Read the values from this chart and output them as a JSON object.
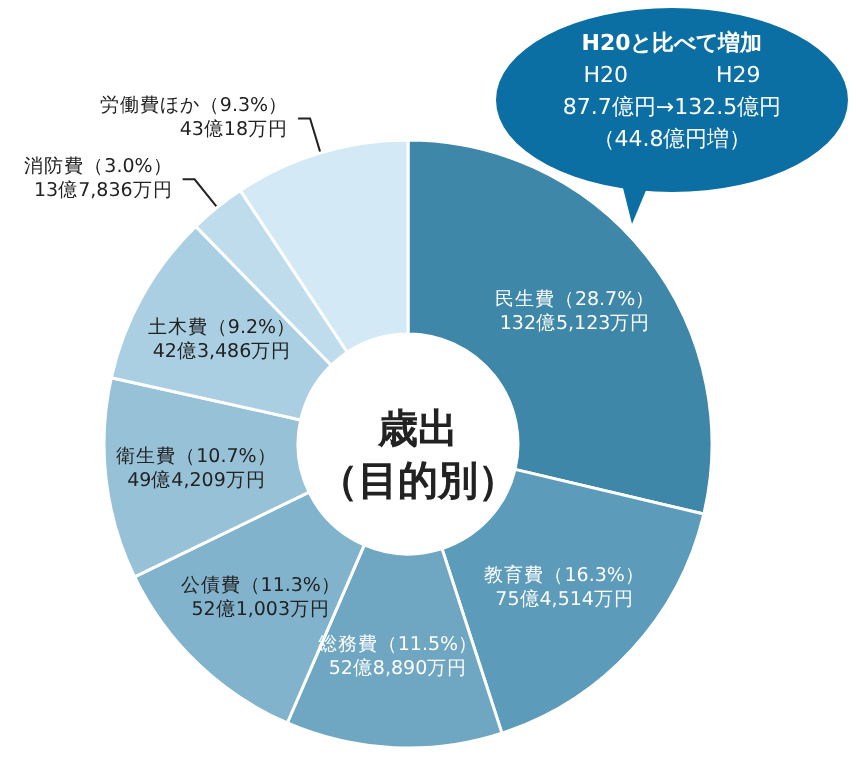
{
  "chart_data": {
    "type": "donut",
    "title": "歳出（目的別）",
    "categories": [
      "民生費",
      "教育費",
      "総務費",
      "公債費",
      "衛生費",
      "土木費",
      "消防費",
      "労働費ほか"
    ],
    "values": [
      28.7,
      16.3,
      11.5,
      11.3,
      10.7,
      9.2,
      3.0,
      9.3
    ],
    "value_labels": [
      "（28.7%）\n132億5,123万円",
      "（16.3%）\n75億4,514万円",
      "（11.5%）\n52億8,890万円",
      "（11.3%）\n52億1,003万円",
      "（10.7%）\n49億4,209万円",
      "（9.2%）\n42億3,486万円",
      "（3.0%）\n13億7,836万円",
      "（9.3%）\n43億18万円"
    ],
    "colors": [
      "#3f87a8",
      "#5c9bb9",
      "#6fa7c3",
      "#82b3cc",
      "#96c1d7",
      "#abcfe2",
      "#bfdcec",
      "#d3e9f5"
    ],
    "annotations": [
      "H20と比べて増加",
      "H20　　　　H29",
      "87.7億円→132.5億円",
      "（44.8億円増）"
    ],
    "legend": false
  }
}
